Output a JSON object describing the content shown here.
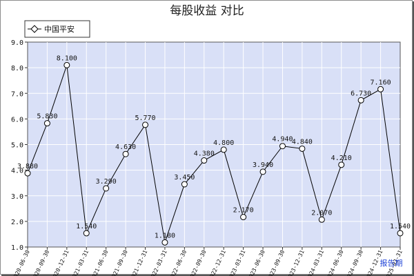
{
  "chart_data": {
    "type": "line",
    "title": "每股收益  对比",
    "xlabel": "报告期",
    "ylabel": "",
    "ylim": [
      1.0,
      9.0
    ],
    "yticks": [
      "1.0",
      "2.0",
      "3.0",
      "4.0",
      "5.0",
      "6.0",
      "7.0",
      "8.0",
      "9.0"
    ],
    "grid": true,
    "legend_position": "top-left",
    "colors": {
      "plot_bg": "#d9e0f7",
      "grid": "#ffffff",
      "line": "#000000",
      "marker_fill": "#ffffff"
    },
    "categories": [
      "2020-06-30",
      "2020-09-30",
      "2020-12-31",
      "2021-03-31",
      "2021-06-30",
      "2021-09-30",
      "2021-12-31",
      "2022-03-31",
      "2022-06-30",
      "2022-09-30",
      "2022-12-31",
      "2023-03-31",
      "2023-06-30",
      "2023-09-30",
      "2023-12-31",
      "2024-03-31",
      "2024-06-30",
      "2024-09-30",
      "2024-12-31",
      "2025-03-31"
    ],
    "series": [
      {
        "name": "中国平安",
        "values": [
          3.88,
          5.83,
          8.1,
          1.54,
          3.29,
          4.63,
          5.77,
          1.18,
          3.45,
          4.38,
          4.8,
          2.17,
          3.94,
          4.94,
          4.84,
          2.07,
          4.21,
          6.73,
          7.16,
          1.54
        ],
        "labels": [
          "3.880",
          "5.830",
          "8.100",
          "1.540",
          "3.290",
          "4.630",
          "5.770",
          "1.180",
          "3.450",
          "4.380",
          "4.800",
          "2.170",
          "3.940",
          "4.940",
          "4.840",
          "2.070",
          "4.210",
          "6.730",
          "7.160",
          "1.540"
        ]
      }
    ]
  }
}
